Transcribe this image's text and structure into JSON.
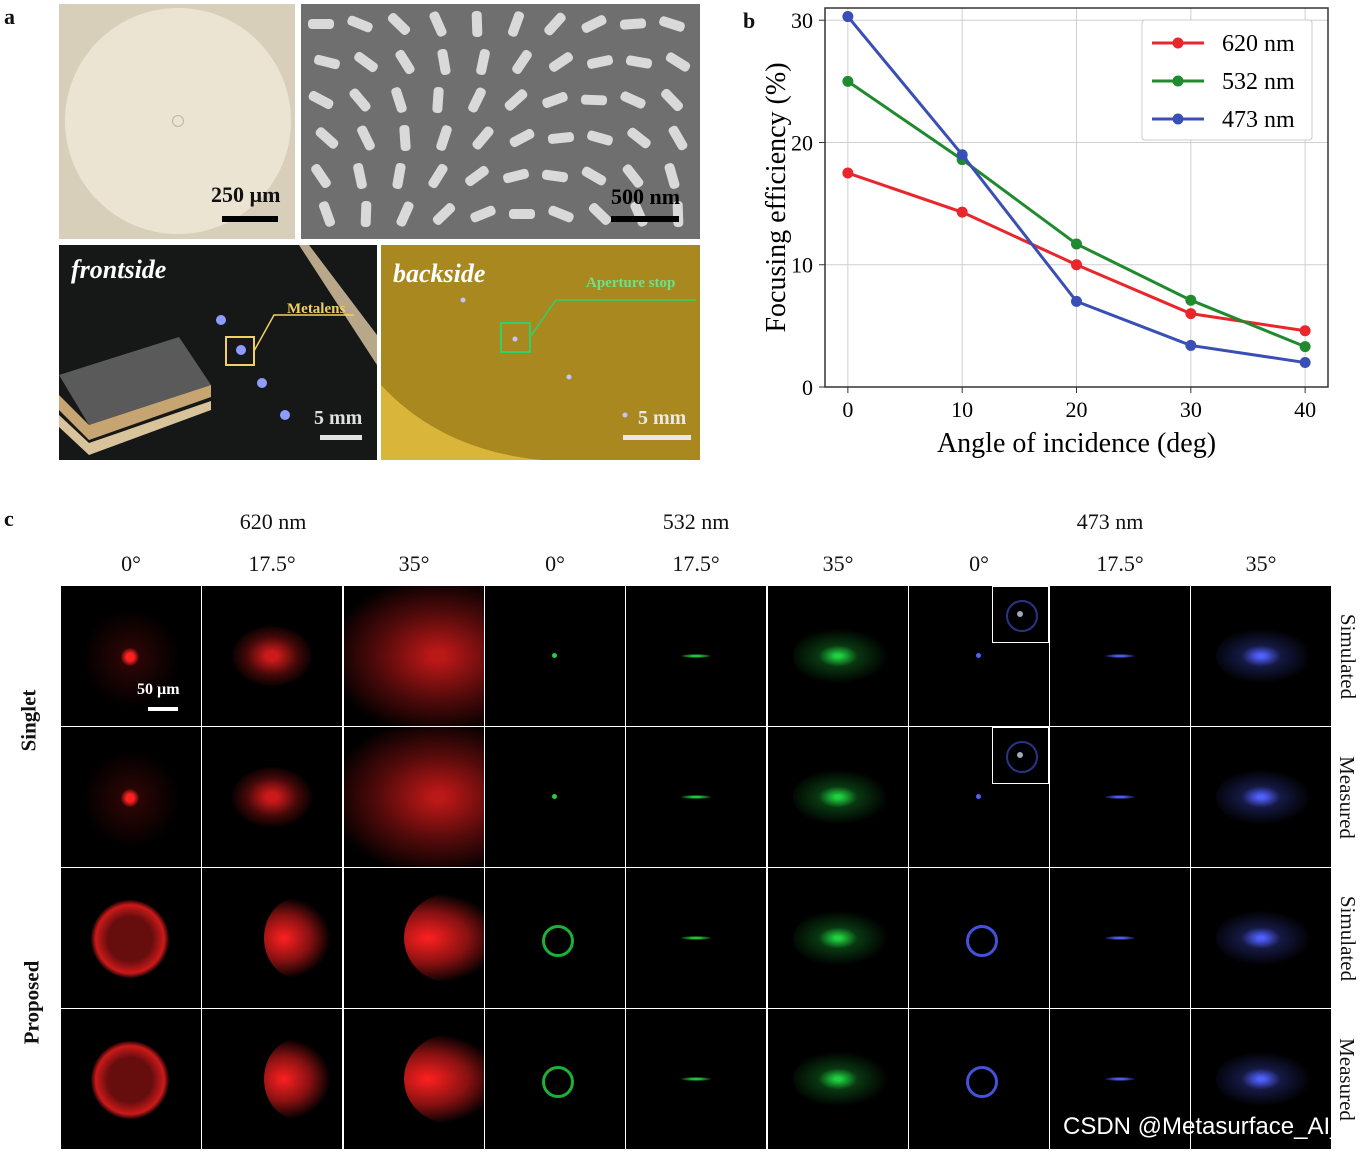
{
  "panel_a": {
    "label": "a",
    "scale_top_left": "250 µm",
    "scale_top_right": "500 nm",
    "frontside_title": "frontside",
    "metalens_label": "Metalens",
    "scale_front": "5 mm",
    "backside_title": "backside",
    "aperture_label": "Aperture stop",
    "scale_back": "5 mm"
  },
  "panel_b": {
    "label": "b"
  },
  "chart_data": {
    "type": "line",
    "title": "",
    "xlabel": "Angle of incidence (deg)",
    "ylabel": "Focusing efficiency (%)",
    "x": [
      0,
      10,
      20,
      30,
      40
    ],
    "xlim": [
      -2,
      42
    ],
    "ylim": [
      0,
      31
    ],
    "xticks": [
      "0",
      "10",
      "20",
      "30",
      "40"
    ],
    "yticks": [
      "0",
      "10",
      "20",
      "30"
    ],
    "grid": true,
    "legend_position": "top-right",
    "series": [
      {
        "name": "620 nm",
        "color": "#e8262b",
        "values": [
          17.5,
          14.3,
          10.0,
          6.0,
          4.6
        ]
      },
      {
        "name": "532 nm",
        "color": "#1f8a2e",
        "values": [
          25.0,
          18.6,
          11.7,
          7.1,
          3.3
        ]
      },
      {
        "name": "473 nm",
        "color": "#3a4fb5",
        "values": [
          30.3,
          19.0,
          7.0,
          3.4,
          2.0
        ]
      }
    ]
  },
  "panel_c": {
    "label": "c",
    "wavelengths": [
      "620 nm",
      "532 nm",
      "473 nm"
    ],
    "angles": [
      "0°",
      "17.5°",
      "35°",
      "0°",
      "17.5°",
      "35°",
      "0°",
      "17.5°",
      "35°"
    ],
    "row_groups": [
      "Singlet",
      "Proposed"
    ],
    "side_labels": [
      "Simulated",
      "Measured",
      "Simulated",
      "Measured"
    ],
    "scale": "50 µm",
    "colors": [
      "#ff2020",
      "#20d040",
      "#5060ff"
    ]
  },
  "watermark": "CSDN @Metasurface_AI_"
}
